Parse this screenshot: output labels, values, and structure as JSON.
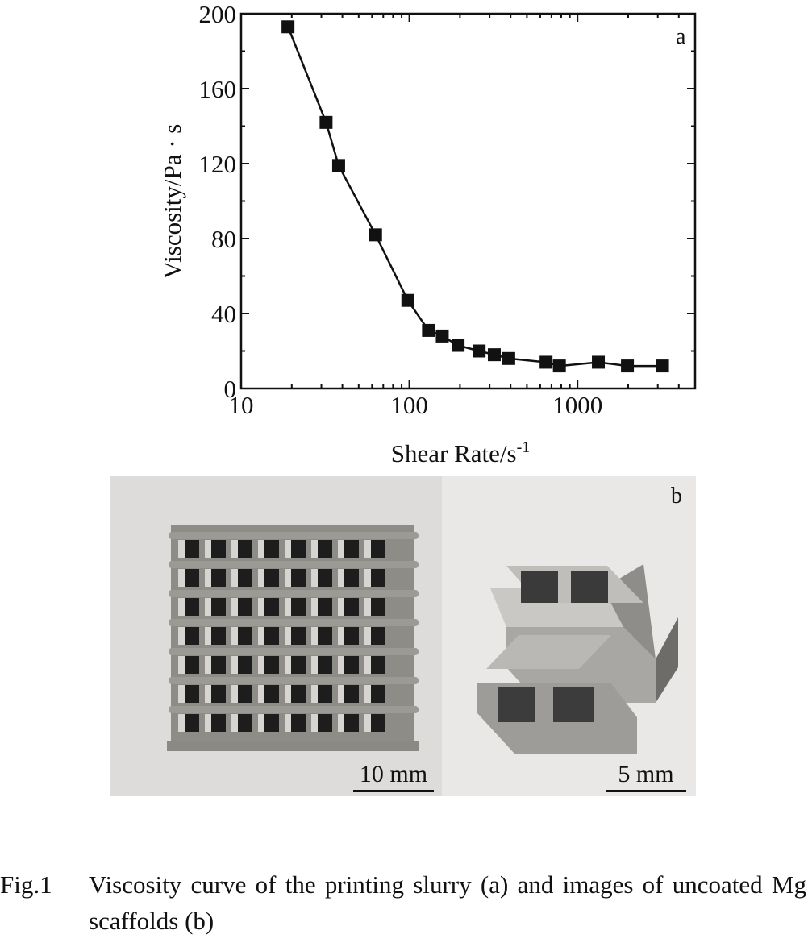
{
  "chart_data": {
    "type": "line",
    "panel_label": "a",
    "xlabel": "Shear Rate/s",
    "xlabel_sup": "-1",
    "ylabel": "Viscosity/Pa · s",
    "x_scale": "log",
    "xlim": [
      10,
      5000
    ],
    "ylim": [
      0,
      200
    ],
    "x_ticks": [
      "10",
      "100",
      "1000"
    ],
    "y_ticks": [
      "0",
      "40",
      "80",
      "120",
      "160",
      "200"
    ],
    "grid": false,
    "marker": "filled-square",
    "series": [
      {
        "x": [
          19,
          32,
          38,
          63,
          98,
          130,
          157,
          195,
          260,
          320,
          390,
          650,
          780,
          1330,
          1980,
          3200
        ],
        "y": [
          193,
          142,
          119,
          82,
          47,
          31,
          28,
          23,
          20,
          18,
          16,
          14,
          12,
          14,
          12,
          12
        ]
      }
    ]
  },
  "panel_b": {
    "label": "b",
    "scalebar_left": "10 mm",
    "scalebar_right": "5 mm"
  },
  "caption": {
    "label": "Fig.1",
    "text": "Viscosity curve of the printing slurry (a) and images of uncoated Mg scaffolds (b)"
  }
}
